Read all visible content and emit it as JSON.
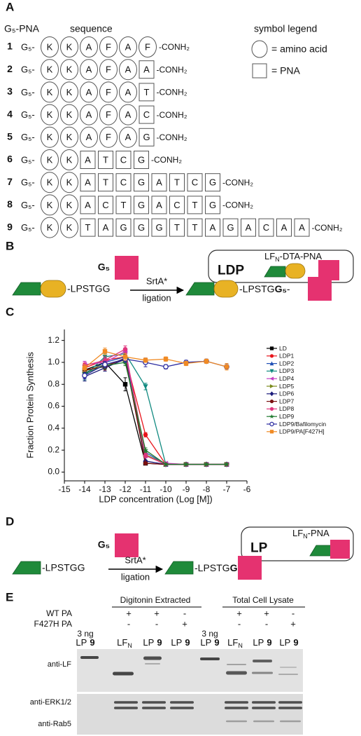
{
  "panel_a": {
    "label": "A",
    "header_left": "G₅-PNA",
    "header_middle": "sequence",
    "legend_title": "symbol legend",
    "legend_amino": "= amino acid",
    "legend_pna": "= PNA",
    "rows": [
      {
        "number": "1",
        "prefix": "G₅-",
        "amino": [
          "K",
          "K",
          "A",
          "F",
          "A",
          "F"
        ],
        "pna": [],
        "suffix": "-CONH₂"
      },
      {
        "number": "2",
        "prefix": "G₅-",
        "amino": [
          "K",
          "K",
          "A",
          "F",
          "A"
        ],
        "pna": [
          "A"
        ],
        "suffix": "-CONH₂"
      },
      {
        "number": "3",
        "prefix": "G₅-",
        "amino": [
          "K",
          "K",
          "A",
          "F",
          "A"
        ],
        "pna": [
          "T"
        ],
        "suffix": "-CONH₂"
      },
      {
        "number": "4",
        "prefix": "G₅-",
        "amino": [
          "K",
          "K",
          "A",
          "F",
          "A"
        ],
        "pna": [
          "C"
        ],
        "suffix": "-CONH₂"
      },
      {
        "number": "5",
        "prefix": "G₅-",
        "amino": [
          "K",
          "K",
          "A",
          "F",
          "A"
        ],
        "pna": [
          "G"
        ],
        "suffix": "-CONH₂"
      },
      {
        "number": "6",
        "prefix": "G₅-",
        "amino": [
          "K",
          "K"
        ],
        "pna": [
          "A",
          "T",
          "C",
          "G"
        ],
        "suffix": "-CONH₂"
      },
      {
        "number": "7",
        "prefix": "G₅-",
        "amino": [
          "K",
          "K"
        ],
        "pna": [
          "A",
          "T",
          "C",
          "G",
          "A",
          "T",
          "C",
          "G"
        ],
        "suffix": "-CONH₂"
      },
      {
        "number": "8",
        "prefix": "G₅-",
        "amino": [
          "K",
          "K"
        ],
        "pna": [
          "A",
          "C",
          "T",
          "G",
          "A",
          "C",
          "T",
          "G"
        ],
        "suffix": "-CONH₂"
      },
      {
        "number": "9",
        "prefix": "G₅-",
        "amino": [
          "K",
          "K"
        ],
        "pna": [
          "T",
          "A",
          "G",
          "G",
          "G",
          "T",
          "T",
          "A",
          "G",
          "A",
          "C",
          "A",
          "A"
        ],
        "suffix": "-CONH₂"
      }
    ]
  },
  "panel_b": {
    "label": "B",
    "reagent": "G₅",
    "product_box": {
      "name": "LF",
      "sub": "N",
      "rest": "-DTA-PNA",
      "abbrev": "LDP"
    },
    "substrate": "-LPSTGG",
    "enzyme": "SrtA*",
    "reaction": "ligation",
    "product": {
      "text": "-LPSTG",
      "bold": "G₅",
      "tail": "-"
    }
  },
  "chart_data": {
    "type": "line",
    "panel_label": "C",
    "x_label": "LDP concentration (Log [M])",
    "y_label": "Fraction Protein Synthesis",
    "x": [
      -14,
      -13,
      -12,
      -11,
      -10,
      -9,
      -8,
      -7
    ],
    "xlim": [
      -15,
      -6
    ],
    "xticks": [
      -15,
      -14,
      -13,
      -12,
      -11,
      -10,
      -9,
      -8,
      -7,
      -6
    ],
    "ylim": [
      -0.08,
      1.3
    ],
    "yticks": [
      {
        "value": 0,
        "label": "0.0"
      },
      0.2,
      0.4,
      0.6,
      0.8,
      {
        "value": 1,
        "label": "1.0"
      },
      1.2
    ],
    "legend": "right",
    "series": [
      {
        "name": "LD",
        "color": "#000000",
        "marker": "square",
        "values": [
          0.93,
          1.0,
          0.8,
          0.08,
          0.07,
          0.07,
          0.07,
          0.07
        ],
        "errors": [
          0.05,
          0.04,
          0.06,
          0.01,
          0.01,
          0.01,
          0.01,
          0.01
        ]
      },
      {
        "name": "LDP1",
        "color": "#e8141b",
        "marker": "circle",
        "values": [
          0.95,
          1.02,
          1.05,
          0.34,
          0.07,
          0.07,
          0.07,
          0.07
        ],
        "errors": [
          0.04,
          0.03,
          0.03,
          0.02,
          0.01,
          0.01,
          0.01,
          0.01
        ]
      },
      {
        "name": "LDP2",
        "color": "#1f4fb5",
        "marker": "triangle-up",
        "values": [
          0.9,
          1.0,
          1.05,
          0.18,
          0.07,
          0.07,
          0.07,
          0.07
        ],
        "errors": [
          0.04,
          0.03,
          0.03,
          0.02,
          0.01,
          0.01,
          0.01,
          0.01
        ]
      },
      {
        "name": "LDP3",
        "color": "#118a80",
        "marker": "triangle-down",
        "values": [
          0.88,
          1.05,
          1.08,
          0.78,
          0.07,
          0.07,
          0.07,
          0.07
        ],
        "errors": [
          0.04,
          0.03,
          0.03,
          0.03,
          0.01,
          0.01,
          0.01,
          0.01
        ]
      },
      {
        "name": "LDP4",
        "color": "#c43fc4",
        "marker": "triangle-left",
        "values": [
          0.98,
          1.0,
          1.1,
          0.15,
          0.08,
          0.07,
          0.07,
          0.07
        ],
        "errors": [
          0.03,
          0.03,
          0.03,
          0.02,
          0.01,
          0.01,
          0.01,
          0.01
        ]
      },
      {
        "name": "LDP5",
        "color": "#7a8a1c",
        "marker": "triangle-right",
        "values": [
          0.92,
          0.98,
          1.02,
          0.16,
          0.07,
          0.07,
          0.07,
          0.07
        ],
        "errors": [
          0.03,
          0.03,
          0.03,
          0.02,
          0.01,
          0.01,
          0.01,
          0.01
        ]
      },
      {
        "name": "LDP6",
        "color": "#1a1a7a",
        "marker": "diamond",
        "values": [
          0.87,
          0.95,
          1.03,
          0.1,
          0.07,
          0.07,
          0.07,
          0.07
        ],
        "errors": [
          0.04,
          0.03,
          0.03,
          0.01,
          0.01,
          0.01,
          0.01,
          0.01
        ]
      },
      {
        "name": "LDP7",
        "color": "#7a1010",
        "marker": "circle",
        "values": [
          0.93,
          0.96,
          1.04,
          0.08,
          0.07,
          0.07,
          0.07,
          0.07
        ],
        "errors": [
          0.03,
          0.03,
          0.03,
          0.01,
          0.01,
          0.01,
          0.01,
          0.01
        ]
      },
      {
        "name": "LDP8",
        "color": "#e0357d",
        "marker": "circle",
        "values": [
          0.97,
          1.02,
          1.12,
          0.15,
          0.07,
          0.07,
          0.07,
          0.07
        ],
        "errors": [
          0.03,
          0.03,
          0.03,
          0.02,
          0.01,
          0.01,
          0.01,
          0.01
        ]
      },
      {
        "name": "LDP9",
        "color": "#1e7a2e",
        "marker": "star",
        "values": [
          0.9,
          0.97,
          1.0,
          0.2,
          0.07,
          0.07,
          0.07,
          0.07
        ],
        "errors": [
          0.03,
          0.03,
          0.03,
          0.02,
          0.01,
          0.01,
          0.01,
          0.01
        ]
      },
      {
        "name": "LDP9/Bafilomycin",
        "color": "#2a2aa0",
        "marker": "circle-open",
        "values": [
          0.88,
          0.98,
          1.03,
          1.0,
          0.96,
          1.0,
          1.01,
          0.96
        ],
        "errors": [
          0.03,
          0.03,
          0.03,
          0.04,
          0.02,
          0.02,
          0.02,
          0.02
        ]
      },
      {
        "name": "LDP9/PA[F427H]",
        "color": "#f08a24",
        "marker": "square",
        "values": [
          0.95,
          1.1,
          1.05,
          1.02,
          1.03,
          0.99,
          1.01,
          0.96
        ],
        "errors": [
          0.03,
          0.03,
          0.03,
          0.02,
          0.02,
          0.02,
          0.02,
          0.03
        ]
      }
    ]
  },
  "panel_d": {
    "label": "D",
    "reagent": "G₅",
    "product_box": {
      "name": "LF",
      "sub": "N",
      "rest": "-PNA",
      "abbrev": "LP"
    },
    "substrate": "-LPSTGG",
    "enzyme": "SrtA*",
    "reaction": "ligation",
    "product": {
      "text": "-LPSTG",
      "bold": "G₅",
      "tail": "-"
    }
  },
  "panel_e": {
    "label": "E",
    "group_headers": [
      "Digitonin Extracted",
      "Total Cell Lysate"
    ],
    "conditions": [
      {
        "name": "WT PA",
        "signs": [
          "+",
          "+",
          "-",
          "+",
          "+",
          "-"
        ]
      },
      {
        "name": "F427H PA",
        "signs": [
          "-",
          "-",
          "+",
          "-",
          "-",
          "+"
        ]
      }
    ],
    "lanes": [
      {
        "amount": "3 ng",
        "name": "LP",
        "number": "9"
      },
      {
        "name": "LF",
        "sub": "N"
      },
      {
        "name": "LP",
        "number": "9"
      },
      {
        "name": "LP",
        "number": "9"
      },
      {
        "amount": "3 ng",
        "name": "LP",
        "number": "9"
      },
      {
        "name": "LF",
        "sub": "N"
      },
      {
        "name": "LP",
        "number": "9"
      },
      {
        "name": "LP",
        "number": "9"
      }
    ],
    "antibodies": [
      "anti-LF",
      "anti-ERK1/2",
      "anti-Rab5"
    ]
  }
}
